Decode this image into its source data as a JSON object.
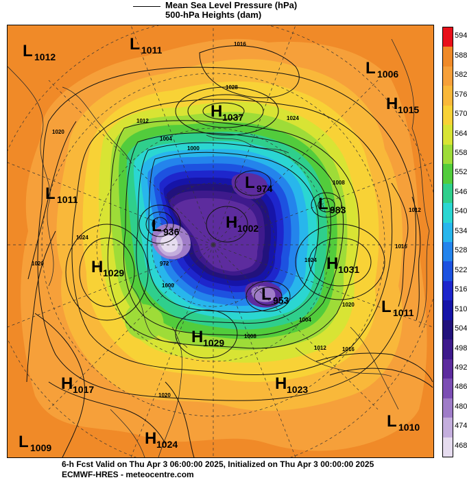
{
  "legend": {
    "mslp_label": "Mean Sea Level Pressure (hPa)",
    "heights_label": "500-hPa Heights (dam)"
  },
  "footer": {
    "line1": "6-h Fcst Valid on Thu Apr  3 06:00:00 2025, Initialized on Thu Apr  3 00:00:00 2025",
    "line2": "ECMWF-HRES  -  meteocentre.com"
  },
  "colorbar": {
    "levels": [
      "594",
      "588",
      "582",
      "576",
      "570",
      "564",
      "558",
      "552",
      "546",
      "540",
      "534",
      "528",
      "522",
      "516",
      "510",
      "504",
      "498",
      "492",
      "486",
      "480",
      "474",
      "468"
    ],
    "colors": [
      "#e8101a",
      "#f08a28",
      "#f6a03a",
      "#f9b83a",
      "#f8d236",
      "#d8e434",
      "#9edc38",
      "#52cc3c",
      "#2fcf8c",
      "#2bd6d2",
      "#28b6ec",
      "#2484ec",
      "#1d52e0",
      "#1e26cc",
      "#1614a8",
      "#22127c",
      "#3e1a8c",
      "#5d2c9e",
      "#7c4eb4",
      "#9f7cc8",
      "#c4aedd",
      "#e6dcef"
    ]
  },
  "pressure_centers": [
    {
      "type": "L",
      "value": "1012"
    },
    {
      "type": "L",
      "value": "1011"
    },
    {
      "type": "L",
      "value": "1006"
    },
    {
      "type": "H",
      "value": "1015"
    },
    {
      "type": "H",
      "value": "1037"
    },
    {
      "type": "L",
      "value": "974"
    },
    {
      "type": "L",
      "value": "983"
    },
    {
      "type": "L",
      "value": "1011"
    },
    {
      "type": "L",
      "value": "936"
    },
    {
      "type": "H",
      "value": "1029"
    },
    {
      "type": "H",
      "value": "1031"
    },
    {
      "type": "H",
      "value": "1002"
    },
    {
      "type": "L",
      "value": "953"
    },
    {
      "type": "L",
      "value": "1011"
    },
    {
      "type": "H",
      "value": "1029"
    },
    {
      "type": "H",
      "value": "1017"
    },
    {
      "type": "H",
      "value": "1023"
    },
    {
      "type": "L",
      "value": "1010"
    },
    {
      "type": "L",
      "value": "1009"
    },
    {
      "type": "H",
      "value": "1024"
    }
  ],
  "isobar_labels": [
    "1016",
    "1028",
    "1024",
    "1012",
    "1004",
    "1000",
    "1020",
    "1024",
    "1008",
    "1020",
    "972",
    "1000",
    "1024",
    "1016",
    "1012",
    "1020",
    "1008",
    "1004",
    "1012",
    "1016",
    "1020"
  ],
  "palette": {
    "warm_base": "#f08a28",
    "orange_light": "#f6a03a",
    "orange_yellow": "#f9b83a",
    "yellow": "#f8d236",
    "yellow_green": "#d8e434",
    "green": "#9edc38",
    "green_dark": "#52cc3c",
    "teal": "#2fcf8c",
    "cyan": "#2bd6d2",
    "blue_light": "#28b6ec",
    "blue": "#2484ec",
    "blue_mid": "#1d52e0",
    "blue_dark": "#1e26cc",
    "navy": "#1614a8",
    "indigo": "#22127c",
    "purple": "#5d2c9e",
    "lavender": "#9f7cc8",
    "lilac": "#c4aedd"
  }
}
